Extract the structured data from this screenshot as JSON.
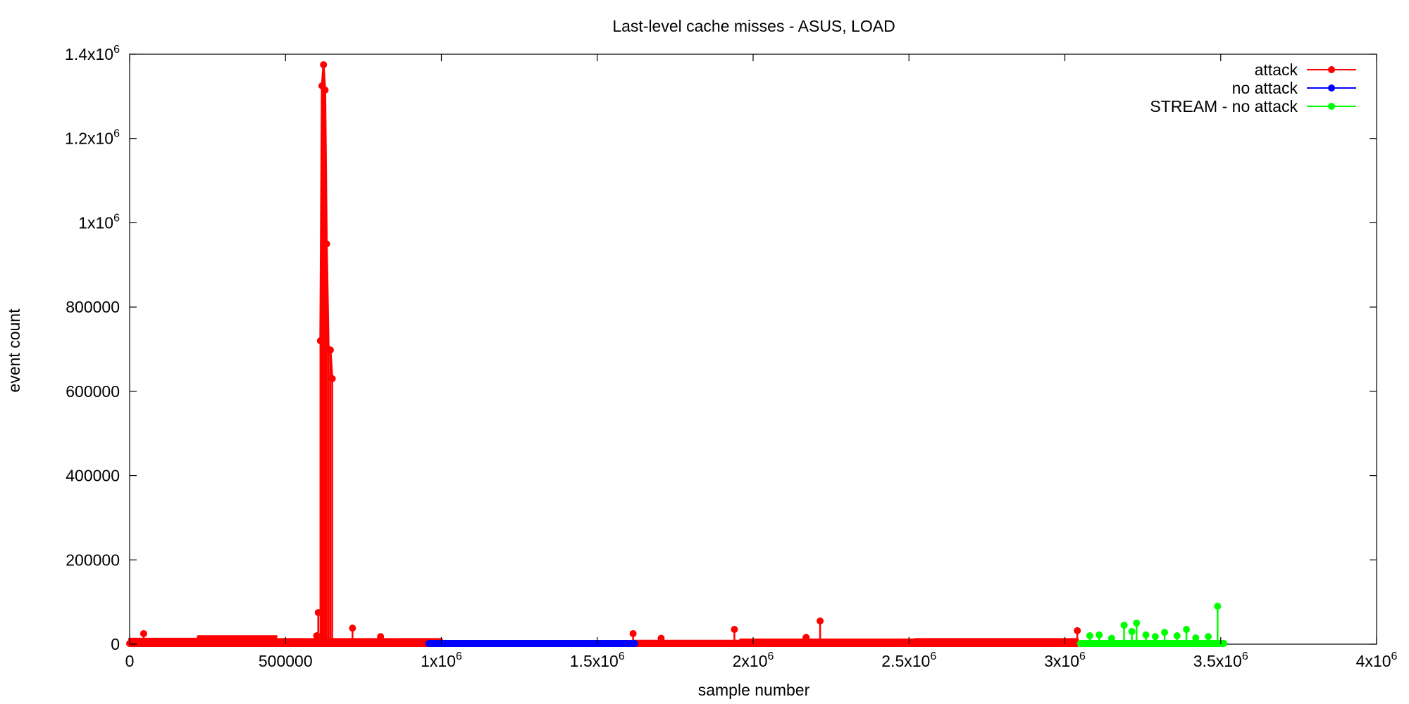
{
  "chart_data": {
    "type": "line",
    "title": "Last-level cache misses - ASUS, LOAD",
    "xlabel": "sample number",
    "ylabel": "event count",
    "xlim": [
      0,
      4000000
    ],
    "ylim": [
      0,
      1400000
    ],
    "x_ticks": [
      {
        "value": 0,
        "base": "0",
        "exp": ""
      },
      {
        "value": 500000,
        "base": "500000",
        "exp": ""
      },
      {
        "value": 1000000,
        "base": "1x10",
        "exp": "6"
      },
      {
        "value": 1500000,
        "base": "1.5x10",
        "exp": "6"
      },
      {
        "value": 2000000,
        "base": "2x10",
        "exp": "6"
      },
      {
        "value": 2500000,
        "base": "2.5x10",
        "exp": "6"
      },
      {
        "value": 3000000,
        "base": "3x10",
        "exp": "6"
      },
      {
        "value": 3500000,
        "base": "3.5x10",
        "exp": "6"
      },
      {
        "value": 4000000,
        "base": "4x10",
        "exp": "6"
      }
    ],
    "y_ticks": [
      {
        "value": 0,
        "base": "0",
        "exp": ""
      },
      {
        "value": 200000,
        "base": "200000",
        "exp": ""
      },
      {
        "value": 400000,
        "base": "400000",
        "exp": ""
      },
      {
        "value": 600000,
        "base": "600000",
        "exp": ""
      },
      {
        "value": 800000,
        "base": "800000",
        "exp": ""
      },
      {
        "value": 1000000,
        "base": "1x10",
        "exp": "6"
      },
      {
        "value": 1200000,
        "base": "1.2x10",
        "exp": "6"
      },
      {
        "value": 1400000,
        "base": "1.4x10",
        "exp": "6"
      }
    ],
    "legend_position": "top-right",
    "grid": false,
    "series": [
      {
        "name": "attack",
        "color": "#ff0000",
        "x_range": [
          0,
          3040000
        ],
        "baseline_segments": [
          [
            0,
            220000,
            12000
          ],
          [
            220000,
            470000,
            18000
          ],
          [
            470000,
            1000000,
            11000
          ],
          [
            1000000,
            1620000,
            5000
          ],
          [
            1620000,
            1960000,
            7000
          ],
          [
            1960000,
            2520000,
            10000
          ],
          [
            2520000,
            3040000,
            11000
          ]
        ],
        "points": [
          [
            45000,
            25000
          ],
          [
            600000,
            20000
          ],
          [
            605000,
            75000
          ],
          [
            612000,
            720000
          ],
          [
            617000,
            1325000
          ],
          [
            622000,
            1375000
          ],
          [
            627000,
            1315000
          ],
          [
            632000,
            950000
          ],
          [
            638000,
            700000
          ],
          [
            644000,
            698000
          ],
          [
            650000,
            630000
          ],
          [
            715000,
            38000
          ],
          [
            805000,
            18000
          ],
          [
            1615000,
            25000
          ],
          [
            1705000,
            14000
          ],
          [
            1940000,
            35000
          ],
          [
            2170000,
            16000
          ],
          [
            2215000,
            55000
          ],
          [
            3040000,
            32000
          ]
        ]
      },
      {
        "name": "no attack",
        "color": "#0000ff",
        "x_range": [
          960000,
          1620000
        ],
        "baseline_segments": [
          [
            960000,
            1140000,
            5000
          ],
          [
            1140000,
            1620000,
            3000
          ]
        ],
        "points": []
      },
      {
        "name": "STREAM - no attack",
        "color": "#00ff00",
        "x_range": [
          3050000,
          3510000
        ],
        "baseline_segments": [
          [
            3050000,
            3510000,
            6000
          ]
        ],
        "points": [
          [
            3080000,
            20000
          ],
          [
            3110000,
            22000
          ],
          [
            3150000,
            14000
          ],
          [
            3190000,
            45000
          ],
          [
            3215000,
            30000
          ],
          [
            3230000,
            50000
          ],
          [
            3260000,
            22000
          ],
          [
            3290000,
            18000
          ],
          [
            3320000,
            28000
          ],
          [
            3360000,
            20000
          ],
          [
            3390000,
            35000
          ],
          [
            3420000,
            15000
          ],
          [
            3460000,
            18000
          ],
          [
            3490000,
            90000
          ]
        ]
      }
    ]
  }
}
